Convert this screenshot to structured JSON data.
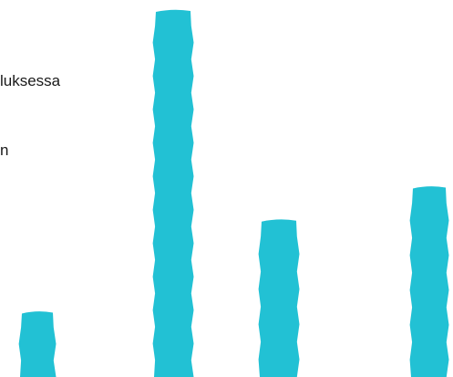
{
  "text_fragments": [
    "luksessa",
    "n"
  ],
  "chart_data": {
    "type": "bar",
    "categories": [
      "",
      "",
      "",
      ""
    ],
    "values": [
      18,
      100,
      43,
      52
    ],
    "ylim": [
      0,
      100
    ],
    "bar_color": "#22c1d4",
    "grid": false,
    "title": "",
    "xlabel": "",
    "ylabel": ""
  }
}
